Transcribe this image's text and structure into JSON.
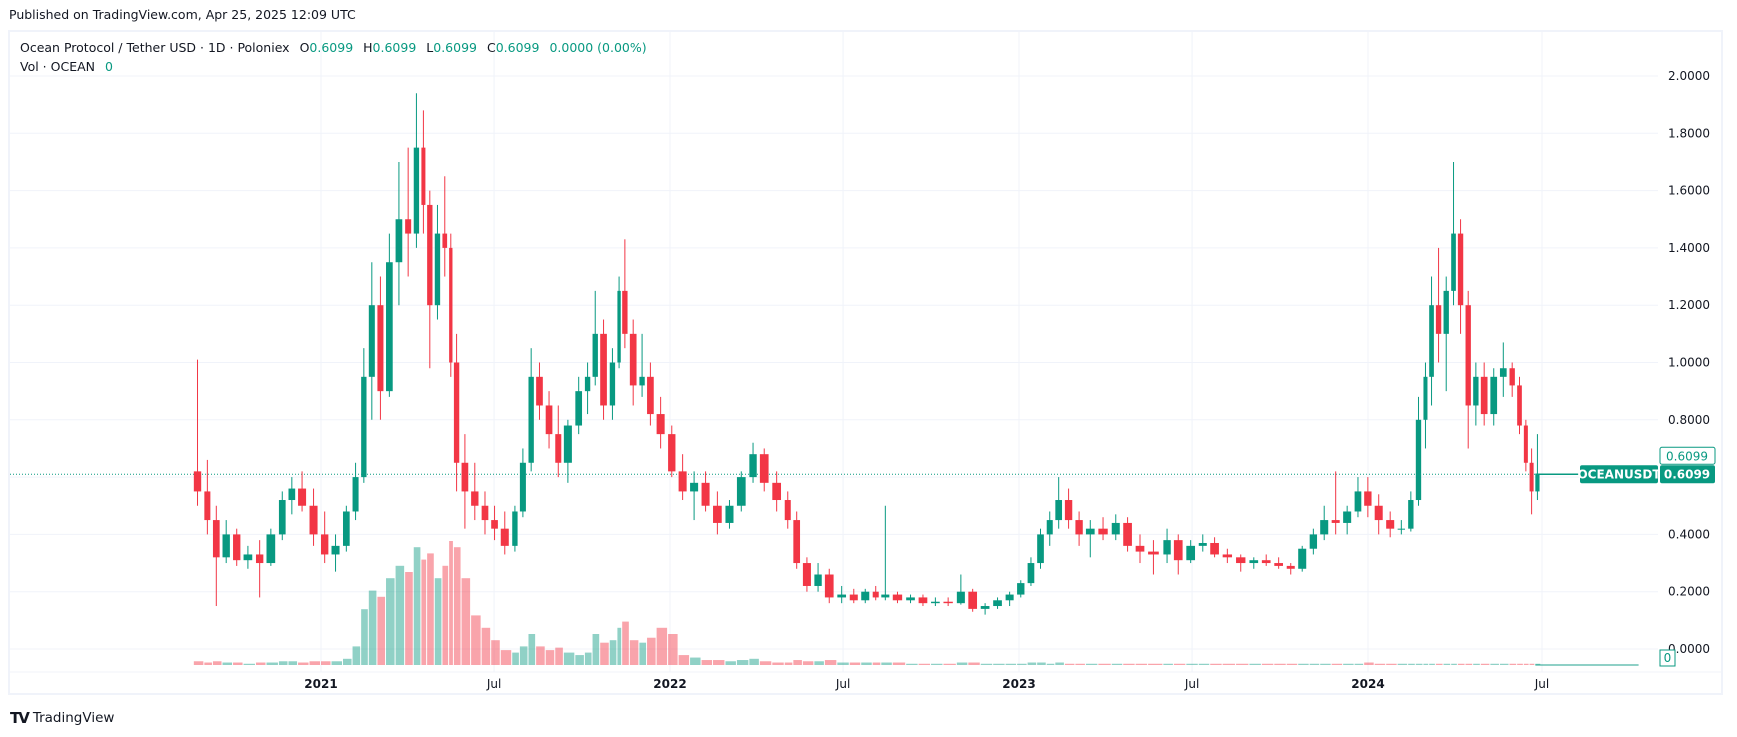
{
  "published": "Published on TradingView.com, Apr 25, 2025 12:09 UTC",
  "legend": {
    "symbol": "Ocean Protocol / Tether USD · 1D · Poloniex",
    "o_label": "O",
    "o": "0.6099",
    "h_label": "H",
    "h": "0.6099",
    "l_label": "L",
    "l": "0.6099",
    "c_label": "C",
    "c": "0.6099",
    "change": "0.0000 (0.00%)",
    "vol_label": "Vol · OCEAN",
    "vol": "0"
  },
  "footer": {
    "brand": "TradingView"
  },
  "colors": {
    "up": "#089981",
    "down": "#f23645",
    "grid": "#f0f3fa"
  },
  "chart_data": {
    "type": "candlestick",
    "symbol_tag": "OCEANUSDT",
    "last_price": "0.6099",
    "last_price_box": "0.6099",
    "volume_last": "0",
    "y_ticks": [
      "0.0000",
      "0.2000",
      "0.4000",
      "0.6000",
      "0.8000",
      "1.0000",
      "1.2000",
      "1.4000",
      "1.6000",
      "1.8000",
      "2.0000"
    ],
    "y_tick_labels_shown": [
      "0.0000",
      "0.2000",
      "0.4000",
      "0.8000",
      "1.0000",
      "1.2000",
      "1.4000",
      "1.6000",
      "1.8000",
      "2.0000"
    ],
    "ylim": [
      0,
      2.0
    ],
    "x_ticks": [
      {
        "date": "2021-01-01",
        "label": "2021",
        "bold": true
      },
      {
        "date": "2021-07-01",
        "label": "Jul",
        "bold": false
      },
      {
        "date": "2022-01-01",
        "label": "2022",
        "bold": true
      },
      {
        "date": "2022-07-01",
        "label": "Jul",
        "bold": false
      },
      {
        "date": "2023-01-01",
        "label": "2023",
        "bold": true
      },
      {
        "date": "2023-07-01",
        "label": "Jul",
        "bold": false
      },
      {
        "date": "2024-01-01",
        "label": "2024",
        "bold": true
      },
      {
        "date": "2024-07-01",
        "label": "Jul",
        "bold": false
      }
    ],
    "xlim": [
      "2020-04-15",
      "2024-10-20"
    ],
    "flat_until": "2024-10-10",
    "candle_fields": [
      "date",
      "open",
      "high",
      "low",
      "close",
      "volume_relative"
    ],
    "candles": [
      [
        "2020-08-21",
        0.62,
        1.01,
        0.5,
        0.55,
        3
      ],
      [
        "2020-09-01",
        0.55,
        0.66,
        0.4,
        0.45,
        2
      ],
      [
        "2020-09-10",
        0.45,
        0.5,
        0.15,
        0.32,
        3
      ],
      [
        "2020-09-20",
        0.32,
        0.45,
        0.3,
        0.4,
        2
      ],
      [
        "2020-10-01",
        0.4,
        0.42,
        0.29,
        0.31,
        2
      ],
      [
        "2020-10-12",
        0.31,
        0.36,
        0.28,
        0.33,
        1
      ],
      [
        "2020-10-25",
        0.33,
        0.38,
        0.18,
        0.3,
        2
      ],
      [
        "2020-11-05",
        0.3,
        0.42,
        0.29,
        0.4,
        2
      ],
      [
        "2020-11-18",
        0.4,
        0.55,
        0.38,
        0.52,
        3
      ],
      [
        "2020-11-28",
        0.52,
        0.6,
        0.47,
        0.56,
        3
      ],
      [
        "2020-12-08",
        0.56,
        0.62,
        0.48,
        0.5,
        2
      ],
      [
        "2020-12-20",
        0.5,
        0.56,
        0.36,
        0.4,
        3
      ],
      [
        "2021-01-01",
        0.4,
        0.48,
        0.3,
        0.33,
        3
      ],
      [
        "2021-01-12",
        0.33,
        0.4,
        0.27,
        0.36,
        3
      ],
      [
        "2021-01-24",
        0.36,
        0.5,
        0.34,
        0.48,
        5
      ],
      [
        "2021-02-03",
        0.48,
        0.65,
        0.45,
        0.6,
        15
      ],
      [
        "2021-02-12",
        0.6,
        1.05,
        0.58,
        0.95,
        45
      ],
      [
        "2021-02-20",
        0.95,
        1.35,
        0.8,
        1.2,
        60
      ],
      [
        "2021-03-01",
        1.2,
        1.3,
        0.8,
        0.9,
        55
      ],
      [
        "2021-03-10",
        0.9,
        1.45,
        0.88,
        1.35,
        70
      ],
      [
        "2021-03-20",
        1.35,
        1.7,
        1.2,
        1.5,
        80
      ],
      [
        "2021-03-30",
        1.5,
        1.75,
        1.3,
        1.45,
        75
      ],
      [
        "2021-04-08",
        1.45,
        1.94,
        1.4,
        1.75,
        95
      ],
      [
        "2021-04-16",
        1.75,
        1.88,
        1.45,
        1.55,
        85
      ],
      [
        "2021-04-22",
        1.55,
        1.6,
        0.98,
        1.2,
        90
      ],
      [
        "2021-04-30",
        1.2,
        1.55,
        1.15,
        1.45,
        70
      ],
      [
        "2021-05-08",
        1.45,
        1.65,
        1.3,
        1.4,
        80
      ],
      [
        "2021-05-15",
        1.4,
        1.45,
        0.95,
        1.0,
        100
      ],
      [
        "2021-05-20",
        1.0,
        1.1,
        0.55,
        0.65,
        95
      ],
      [
        "2021-05-28",
        0.65,
        0.75,
        0.42,
        0.55,
        70
      ],
      [
        "2021-06-07",
        0.55,
        0.65,
        0.45,
        0.5,
        40
      ],
      [
        "2021-06-18",
        0.5,
        0.55,
        0.4,
        0.45,
        30
      ],
      [
        "2021-06-28",
        0.45,
        0.5,
        0.38,
        0.42,
        20
      ],
      [
        "2021-07-08",
        0.42,
        0.48,
        0.33,
        0.36,
        12
      ],
      [
        "2021-07-20",
        0.36,
        0.5,
        0.34,
        0.48,
        10
      ],
      [
        "2021-07-28",
        0.48,
        0.7,
        0.46,
        0.65,
        15
      ],
      [
        "2021-08-06",
        0.65,
        1.05,
        0.62,
        0.95,
        25
      ],
      [
        "2021-08-14",
        0.95,
        1.0,
        0.8,
        0.85,
        15
      ],
      [
        "2021-08-24",
        0.85,
        0.9,
        0.7,
        0.75,
        12
      ],
      [
        "2021-09-03",
        0.75,
        0.85,
        0.6,
        0.65,
        14
      ],
      [
        "2021-09-12",
        0.65,
        0.8,
        0.58,
        0.78,
        10
      ],
      [
        "2021-09-24",
        0.78,
        0.95,
        0.75,
        0.9,
        8
      ],
      [
        "2021-10-04",
        0.9,
        1.0,
        0.82,
        0.95,
        10
      ],
      [
        "2021-10-12",
        0.95,
        1.25,
        0.92,
        1.1,
        25
      ],
      [
        "2021-10-20",
        1.1,
        1.15,
        0.8,
        0.85,
        18
      ],
      [
        "2021-10-30",
        0.85,
        1.05,
        0.8,
        1.0,
        20
      ],
      [
        "2021-11-07",
        1.0,
        1.3,
        0.98,
        1.25,
        30
      ],
      [
        "2021-11-12",
        1.25,
        1.43,
        1.05,
        1.1,
        35
      ],
      [
        "2021-11-20",
        1.1,
        1.15,
        0.85,
        0.92,
        20
      ],
      [
        "2021-11-30",
        0.92,
        1.1,
        0.88,
        0.95,
        18
      ],
      [
        "2021-12-08",
        0.95,
        1.0,
        0.78,
        0.82,
        22
      ],
      [
        "2021-12-18",
        0.82,
        0.88,
        0.7,
        0.75,
        30
      ],
      [
        "2021-12-30",
        0.75,
        0.78,
        0.6,
        0.62,
        25
      ],
      [
        "2022-01-10",
        0.62,
        0.68,
        0.52,
        0.55,
        8
      ],
      [
        "2022-01-22",
        0.55,
        0.62,
        0.45,
        0.58,
        6
      ],
      [
        "2022-02-03",
        0.58,
        0.62,
        0.48,
        0.5,
        4
      ],
      [
        "2022-02-15",
        0.5,
        0.55,
        0.4,
        0.44,
        4
      ],
      [
        "2022-02-28",
        0.44,
        0.52,
        0.42,
        0.5,
        3
      ],
      [
        "2022-03-12",
        0.5,
        0.62,
        0.48,
        0.6,
        4
      ],
      [
        "2022-03-25",
        0.6,
        0.72,
        0.58,
        0.68,
        5
      ],
      [
        "2022-04-05",
        0.68,
        0.7,
        0.55,
        0.58,
        3
      ],
      [
        "2022-04-18",
        0.58,
        0.62,
        0.48,
        0.52,
        2
      ],
      [
        "2022-05-01",
        0.52,
        0.55,
        0.42,
        0.45,
        2
      ],
      [
        "2022-05-10",
        0.45,
        0.48,
        0.28,
        0.3,
        4
      ],
      [
        "2022-05-20",
        0.3,
        0.32,
        0.2,
        0.22,
        3
      ],
      [
        "2022-06-01",
        0.22,
        0.3,
        0.2,
        0.26,
        3
      ],
      [
        "2022-06-12",
        0.26,
        0.28,
        0.16,
        0.18,
        4
      ],
      [
        "2022-06-25",
        0.18,
        0.22,
        0.16,
        0.19,
        2
      ],
      [
        "2022-07-08",
        0.19,
        0.21,
        0.16,
        0.17,
        2
      ],
      [
        "2022-07-20",
        0.17,
        0.21,
        0.16,
        0.2,
        2
      ],
      [
        "2022-08-01",
        0.2,
        0.22,
        0.17,
        0.18,
        2
      ],
      [
        "2022-08-10",
        0.18,
        0.5,
        0.17,
        0.19,
        2
      ],
      [
        "2022-08-22",
        0.19,
        0.2,
        0.16,
        0.17,
        2
      ],
      [
        "2022-09-05",
        0.17,
        0.19,
        0.16,
        0.18,
        1
      ],
      [
        "2022-09-18",
        0.18,
        0.19,
        0.15,
        0.16,
        1
      ],
      [
        "2022-10-01",
        0.16,
        0.18,
        0.15,
        0.165,
        1
      ],
      [
        "2022-10-14",
        0.165,
        0.18,
        0.15,
        0.16,
        1
      ],
      [
        "2022-10-28",
        0.16,
        0.26,
        0.155,
        0.2,
        2
      ],
      [
        "2022-11-09",
        0.2,
        0.21,
        0.13,
        0.14,
        2
      ],
      [
        "2022-11-22",
        0.14,
        0.16,
        0.12,
        0.15,
        1
      ],
      [
        "2022-12-05",
        0.15,
        0.18,
        0.14,
        0.17,
        1
      ],
      [
        "2022-12-18",
        0.17,
        0.2,
        0.15,
        0.19,
        1
      ],
      [
        "2022-12-30",
        0.19,
        0.24,
        0.18,
        0.23,
        1
      ],
      [
        "2023-01-10",
        0.23,
        0.32,
        0.22,
        0.3,
        2
      ],
      [
        "2023-01-20",
        0.3,
        0.42,
        0.28,
        0.4,
        2
      ],
      [
        "2023-01-30",
        0.4,
        0.48,
        0.36,
        0.45,
        1
      ],
      [
        "2023-02-08",
        0.45,
        0.6,
        0.42,
        0.52,
        2
      ],
      [
        "2023-02-18",
        0.52,
        0.56,
        0.42,
        0.45,
        1
      ],
      [
        "2023-03-01",
        0.45,
        0.48,
        0.36,
        0.4,
        1
      ],
      [
        "2023-03-12",
        0.4,
        0.45,
        0.32,
        0.42,
        1
      ],
      [
        "2023-03-25",
        0.42,
        0.46,
        0.38,
        0.4,
        1
      ],
      [
        "2023-04-08",
        0.4,
        0.47,
        0.38,
        0.44,
        1
      ],
      [
        "2023-04-20",
        0.44,
        0.46,
        0.34,
        0.36,
        1
      ],
      [
        "2023-05-03",
        0.36,
        0.4,
        0.3,
        0.34,
        1
      ],
      [
        "2023-05-16",
        0.34,
        0.38,
        0.26,
        0.33,
        1
      ],
      [
        "2023-06-01",
        0.33,
        0.42,
        0.3,
        0.38,
        1
      ],
      [
        "2023-06-12",
        0.38,
        0.4,
        0.26,
        0.31,
        1
      ],
      [
        "2023-06-25",
        0.31,
        0.38,
        0.3,
        0.36,
        1
      ],
      [
        "2023-07-08",
        0.36,
        0.4,
        0.34,
        0.37,
        1
      ],
      [
        "2023-07-20",
        0.37,
        0.39,
        0.32,
        0.33,
        1
      ],
      [
        "2023-08-02",
        0.33,
        0.35,
        0.3,
        0.32,
        1
      ],
      [
        "2023-08-16",
        0.32,
        0.33,
        0.27,
        0.3,
        1
      ],
      [
        "2023-08-30",
        0.3,
        0.32,
        0.28,
        0.31,
        1
      ],
      [
        "2023-09-12",
        0.31,
        0.33,
        0.29,
        0.3,
        1
      ],
      [
        "2023-09-25",
        0.3,
        0.32,
        0.28,
        0.29,
        1
      ],
      [
        "2023-10-08",
        0.29,
        0.3,
        0.26,
        0.28,
        1
      ],
      [
        "2023-10-20",
        0.28,
        0.36,
        0.27,
        0.35,
        1
      ],
      [
        "2023-11-01",
        0.35,
        0.42,
        0.33,
        0.4,
        1
      ],
      [
        "2023-11-12",
        0.4,
        0.5,
        0.38,
        0.45,
        1
      ],
      [
        "2023-11-24",
        0.45,
        0.62,
        0.4,
        0.44,
        1
      ],
      [
        "2023-12-06",
        0.44,
        0.5,
        0.4,
        0.48,
        1
      ],
      [
        "2023-12-18",
        0.48,
        0.6,
        0.46,
        0.55,
        1
      ],
      [
        "2023-12-28",
        0.55,
        0.6,
        0.46,
        0.5,
        2
      ],
      [
        "2024-01-08",
        0.5,
        0.54,
        0.4,
        0.45,
        1
      ],
      [
        "2024-01-20",
        0.45,
        0.48,
        0.39,
        0.42,
        1
      ],
      [
        "2024-02-01",
        0.42,
        0.45,
        0.4,
        0.42,
        1
      ],
      [
        "2024-02-12",
        0.42,
        0.55,
        0.41,
        0.52,
        1
      ],
      [
        "2024-02-20",
        0.52,
        0.88,
        0.5,
        0.8,
        1
      ],
      [
        "2024-02-28",
        0.8,
        1.0,
        0.7,
        0.95,
        1
      ],
      [
        "2024-03-05",
        0.95,
        1.3,
        0.85,
        1.2,
        1
      ],
      [
        "2024-03-12",
        1.2,
        1.4,
        1.0,
        1.1,
        1
      ],
      [
        "2024-03-20",
        1.1,
        1.3,
        0.9,
        1.25,
        1
      ],
      [
        "2024-03-28",
        1.25,
        1.7,
        1.2,
        1.45,
        1
      ],
      [
        "2024-04-04",
        1.45,
        1.5,
        1.1,
        1.2,
        1
      ],
      [
        "2024-04-12",
        1.2,
        1.25,
        0.7,
        0.85,
        1
      ],
      [
        "2024-04-20",
        0.85,
        1.0,
        0.78,
        0.95,
        1
      ],
      [
        "2024-04-28",
        0.95,
        1.0,
        0.78,
        0.82,
        1
      ],
      [
        "2024-05-08",
        0.82,
        0.98,
        0.78,
        0.95,
        1
      ],
      [
        "2024-05-18",
        0.95,
        1.07,
        0.88,
        0.98,
        1
      ],
      [
        "2024-05-28",
        0.98,
        1.0,
        0.88,
        0.92,
        1
      ],
      [
        "2024-06-05",
        0.92,
        0.95,
        0.75,
        0.78,
        1
      ],
      [
        "2024-06-12",
        0.78,
        0.8,
        0.62,
        0.65,
        1
      ],
      [
        "2024-06-18",
        0.65,
        0.7,
        0.47,
        0.55,
        1
      ],
      [
        "2024-06-24",
        0.55,
        0.75,
        0.52,
        0.6099,
        1
      ]
    ]
  }
}
